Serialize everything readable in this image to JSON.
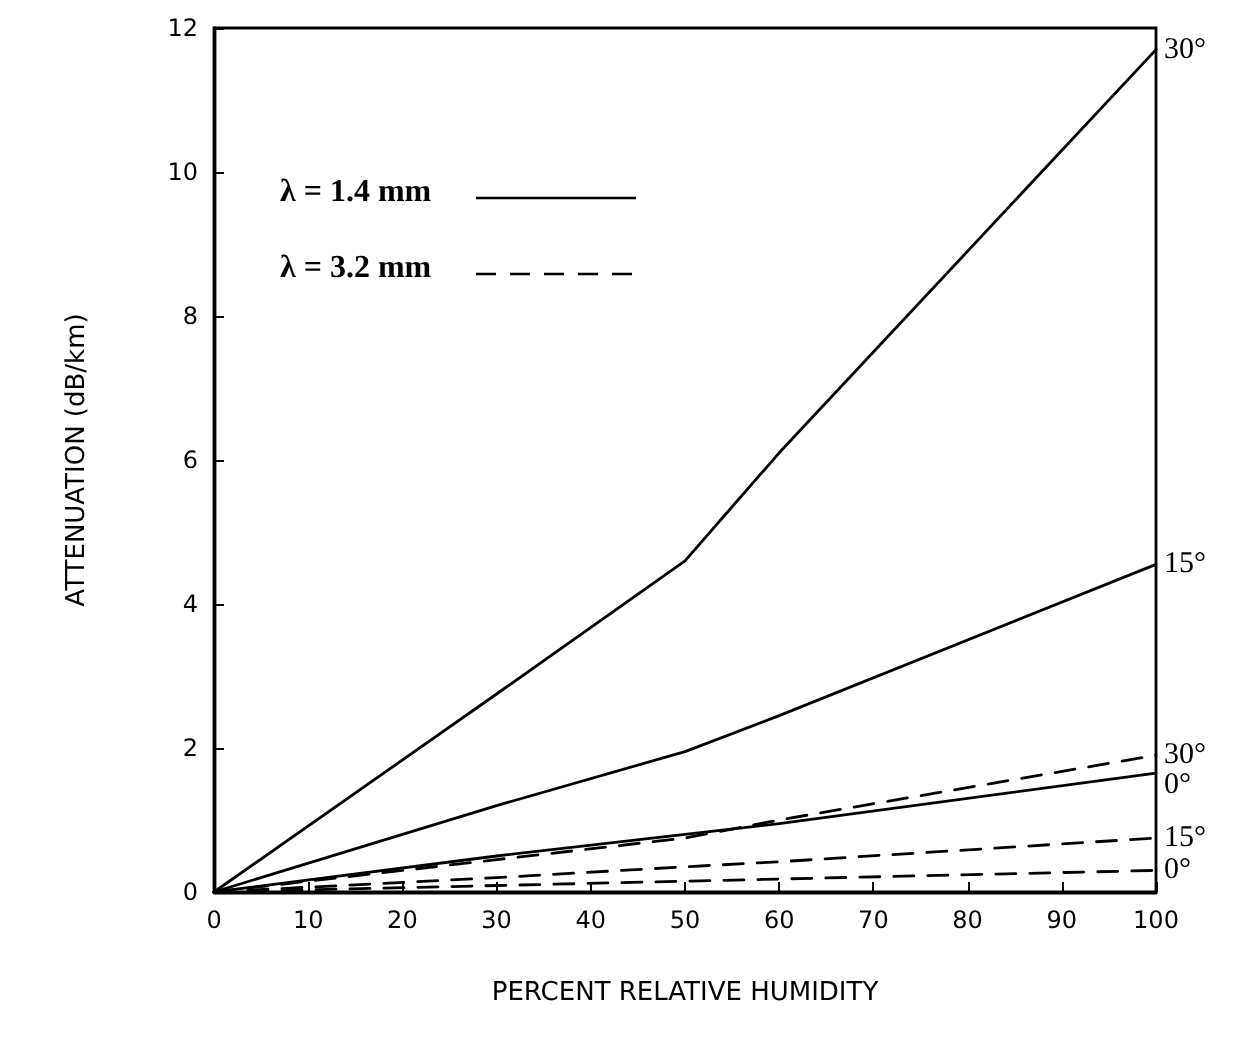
{
  "chart_data": {
    "type": "line",
    "xlabel": "PERCENT RELATIVE HUMIDITY",
    "ylabel": "ATTENUATION (dB/km)",
    "annotations": [
      "λ = 1.4 mm",
      "λ = 3.2 mm"
    ],
    "x": [
      0,
      30,
      50,
      60,
      100
    ],
    "series": [
      {
        "name": "30°",
        "color": "#000000",
        "line_style": "solid",
        "values": [
          0,
          2.75,
          4.6,
          6.1,
          11.7
        ]
      },
      {
        "name": "15°",
        "color": "#000000",
        "line_style": "solid",
        "values": [
          0,
          1.2,
          1.95,
          2.45,
          4.55
        ]
      },
      {
        "name": "0°",
        "color": "#000000",
        "line_style": "solid",
        "values": [
          0,
          0.5,
          0.8,
          0.95,
          1.65
        ]
      },
      {
        "name": "30°",
        "color": "#000000",
        "line_style": "dashed",
        "values": [
          0,
          0.45,
          0.75,
          1.0,
          1.9
        ]
      },
      {
        "name": "15°",
        "color": "#000000",
        "line_style": "dashed",
        "values": [
          0,
          0.2,
          0.35,
          0.42,
          0.75
        ]
      },
      {
        "name": "0°",
        "color": "#000000",
        "line_style": "dashed",
        "values": [
          0,
          0.09,
          0.15,
          0.18,
          0.3
        ]
      }
    ],
    "xlim": [
      0,
      100
    ],
    "xticks": [
      0,
      10,
      20,
      30,
      40,
      50,
      60,
      70,
      80,
      90,
      100
    ],
    "ylim": [
      0,
      12
    ],
    "yticks": [
      0,
      2,
      4,
      6,
      8,
      10,
      12
    ],
    "grid": false,
    "legend": false,
    "marker": "none"
  }
}
